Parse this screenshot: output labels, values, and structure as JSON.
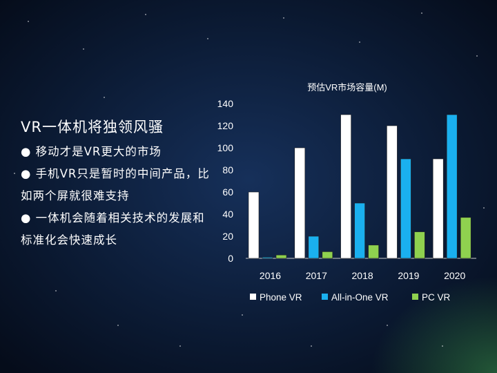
{
  "slide": {
    "title": "VR一体机将独领风骚",
    "bullets": [
      "● 移动才是VR更大的市场",
      "● 手机VR只是暂时的中间产品，比如两个屏就很难支持",
      "● 一体机会随着相关技术的发展和标准化会快速成长"
    ]
  },
  "chart_data": {
    "type": "bar",
    "title": "预估VR市场容量(M)",
    "categories": [
      "2016",
      "2017",
      "2018",
      "2019",
      "2020"
    ],
    "series": [
      {
        "name": "Phone VR",
        "color": "#ffffff",
        "values": [
          60,
          100,
          130,
          120,
          90
        ]
      },
      {
        "name": "All-in-One VR",
        "color": "#1ab0ef",
        "values": [
          1,
          20,
          50,
          90,
          130
        ]
      },
      {
        "name": "PC VR",
        "color": "#8fd14f",
        "values": [
          3,
          6,
          12,
          24,
          37
        ]
      }
    ],
    "ylim": [
      0,
      140
    ],
    "yticks": [
      "0",
      "20",
      "40",
      "60",
      "80",
      "100",
      "120",
      "140"
    ],
    "legend_position": "bottom",
    "xlabel": "",
    "ylabel": ""
  }
}
